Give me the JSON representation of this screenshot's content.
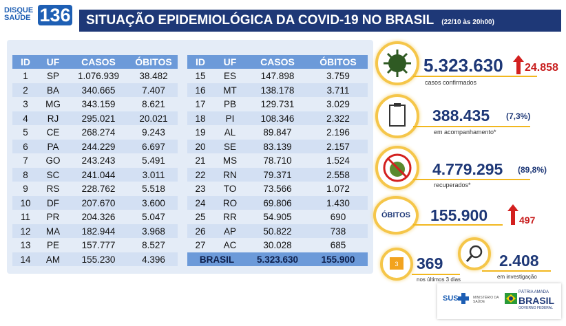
{
  "header": {
    "logo_top": "DISQUE",
    "logo_bottom": "SAÚDE",
    "logo_number": "136",
    "title": "SITUAÇÃO EPIDEMIOLÓGICA DA COVID-19 NO BRASIL",
    "date": "(22/10 às 20h00)"
  },
  "tables": [
    {
      "columns": [
        "ID",
        "UF",
        "CASOS",
        "ÓBITOS"
      ],
      "rows": [
        [
          "1",
          "SP",
          "1.076.939",
          "38.482"
        ],
        [
          "2",
          "BA",
          "340.665",
          "7.407"
        ],
        [
          "3",
          "MG",
          "343.159",
          "8.621"
        ],
        [
          "4",
          "RJ",
          "295.021",
          "20.021"
        ],
        [
          "5",
          "CE",
          "268.274",
          "9.243"
        ],
        [
          "6",
          "PA",
          "244.229",
          "6.697"
        ],
        [
          "7",
          "GO",
          "243.243",
          "5.491"
        ],
        [
          "8",
          "SC",
          "241.044",
          "3.011"
        ],
        [
          "9",
          "RS",
          "228.762",
          "5.518"
        ],
        [
          "10",
          "DF",
          "207.670",
          "3.600"
        ],
        [
          "11",
          "PR",
          "204.326",
          "5.047"
        ],
        [
          "12",
          "MA",
          "182.944",
          "3.968"
        ],
        [
          "13",
          "PE",
          "157.777",
          "8.527"
        ],
        [
          "14",
          "AM",
          "155.230",
          "4.396"
        ]
      ]
    },
    {
      "columns": [
        "ID",
        "UF",
        "CASOS",
        "ÓBITOS"
      ],
      "rows": [
        [
          "15",
          "ES",
          "147.898",
          "3.759"
        ],
        [
          "16",
          "MT",
          "138.178",
          "3.711"
        ],
        [
          "17",
          "PB",
          "129.731",
          "3.029"
        ],
        [
          "18",
          "PI",
          "108.346",
          "2.322"
        ],
        [
          "19",
          "AL",
          "89.847",
          "2.196"
        ],
        [
          "20",
          "SE",
          "83.139",
          "2.157"
        ],
        [
          "21",
          "MS",
          "78.710",
          "1.524"
        ],
        [
          "22",
          "RN",
          "79.371",
          "2.558"
        ],
        [
          "23",
          "TO",
          "73.566",
          "1.072"
        ],
        [
          "24",
          "RO",
          "69.806",
          "1.430"
        ],
        [
          "25",
          "RR",
          "54.905",
          "690"
        ],
        [
          "26",
          "AP",
          "50.822",
          "738"
        ],
        [
          "27",
          "AC",
          "30.028",
          "685"
        ]
      ],
      "total": [
        "BRASIL",
        "5.323.630",
        "155.900"
      ]
    }
  ],
  "stats": {
    "confirmed": {
      "value": "5.323.630",
      "increase": "24.858",
      "label": "casos confirmados"
    },
    "monitoring": {
      "value": "388.435",
      "percent": "(7,3%)",
      "label": "em acompanhamento*"
    },
    "recovered": {
      "value": "4.779.295",
      "percent": "(89,8%)",
      "label": "recuperados*"
    },
    "deaths": {
      "title": "ÓBITOS",
      "value": "155.900",
      "increase": "497"
    },
    "recent": {
      "value": "369",
      "label": "nos últimos 3 dias"
    },
    "investigation": {
      "value": "2.408",
      "label": "em investigação"
    }
  },
  "footer": {
    "sus": "SUS",
    "ministry": "MINISTÉRIO DA SAÚDE",
    "slogan": "PÁTRIA AMADA",
    "brasil": "BRASIL",
    "government": "GOVERNO FEDERAL"
  }
}
